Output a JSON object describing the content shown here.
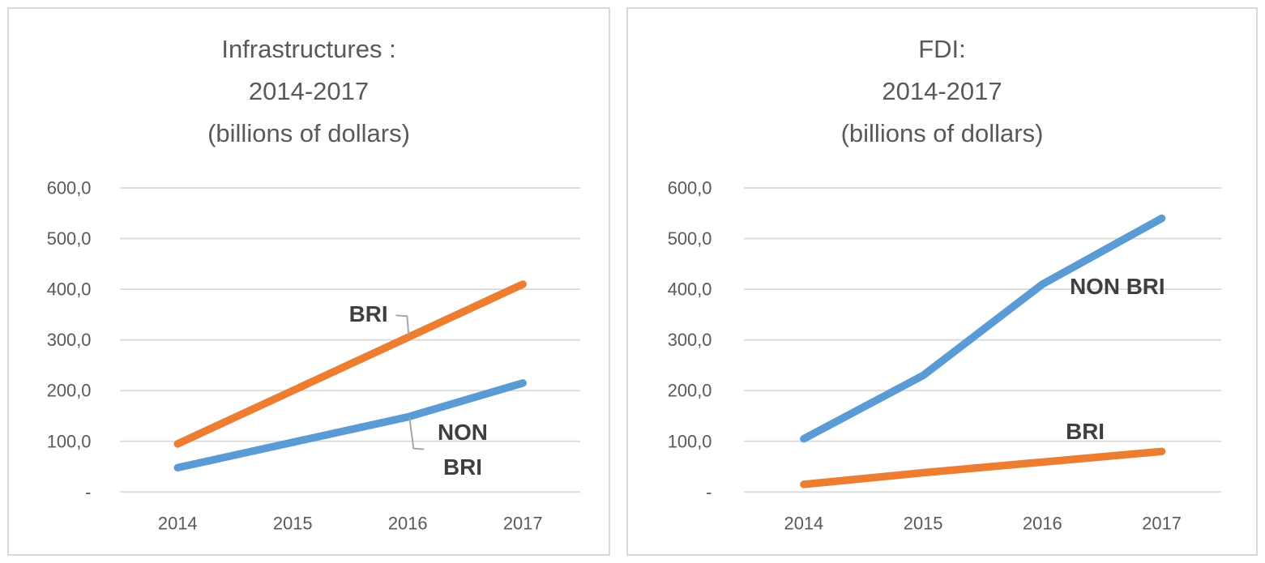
{
  "colors": {
    "bri_orange": "#ED7D31",
    "non_bri_blue": "#5B9BD5",
    "title_gray": "#595959",
    "tick_label_gray": "#595959",
    "annotation_gray": "#3F3F3F",
    "gridline_gray": "#D9D9D9",
    "leader_line_gray": "#A6A6A6",
    "panel_border_gray": "#D9D9D9",
    "background": "#FFFFFF"
  },
  "chart_data": [
    {
      "type": "line",
      "title": "Infrastructures : 2014-2017 (billions of dollars)",
      "title_lines": [
        "Infrastructures :",
        "2014-2017",
        "(billions of dollars)"
      ],
      "categories": [
        "2014",
        "2015",
        "2016",
        "2017"
      ],
      "series": [
        {
          "name": "BRI",
          "color": "#ED7D31",
          "values": [
            95,
            200,
            305,
            410
          ]
        },
        {
          "name": "NON BRI",
          "color": "#5B9BD5",
          "values": [
            48,
            98,
            148,
            215
          ]
        }
      ],
      "xlabel": "",
      "ylabel": "",
      "ylim": [
        0,
        600
      ],
      "ytick_interval": 100,
      "ytick_labels": [
        "-",
        "100,0",
        "200,0",
        "300,0",
        "400,0",
        "500,0",
        "600,0"
      ],
      "grid": "horizontal",
      "legend": "none",
      "annotations": [
        {
          "label": "BRI",
          "lines": [
            "BRI"
          ],
          "series": "BRI",
          "x": 446,
          "y": 378,
          "line_gap": 43,
          "leader": [
            [
              480,
              380
            ],
            [
              494,
              381
            ],
            [
              496,
              405
            ]
          ]
        },
        {
          "label": "NON BRI",
          "lines": [
            "NON",
            "BRI"
          ],
          "series": "NON BRI",
          "x": 563,
          "y": 525,
          "line_gap": 43,
          "leader": [
            [
              497,
              507
            ],
            [
              502,
              545
            ],
            [
              515,
              546
            ]
          ]
        }
      ]
    },
    {
      "type": "line",
      "title": "FDI: 2014-2017 (billions of dollars)",
      "title_lines": [
        "FDI:",
        "2014-2017",
        "(billions of dollars)"
      ],
      "categories": [
        "2014",
        "2015",
        "2016",
        "2017"
      ],
      "series": [
        {
          "name": "NON BRI",
          "color": "#5B9BD5",
          "values": [
            105,
            230,
            410,
            540
          ]
        },
        {
          "name": "BRI",
          "color": "#ED7D31",
          "values": [
            15,
            38,
            59,
            80
          ]
        }
      ],
      "xlabel": "",
      "ylabel": "",
      "ylim": [
        0,
        600
      ],
      "ytick_interval": 100,
      "ytick_labels": [
        "-",
        "100,0",
        "200,0",
        "300,0",
        "400,0",
        "500,0",
        "600,0"
      ],
      "grid": "horizontal",
      "legend": "none",
      "annotations": [
        {
          "label": "NON BRI",
          "lines": [
            "NON BRI"
          ],
          "series": "NON BRI",
          "x": 607,
          "y": 344,
          "line_gap": 43
        },
        {
          "label": "BRI",
          "lines": [
            "BRI"
          ],
          "series": "BRI",
          "x": 567,
          "y": 524,
          "line_gap": 43
        }
      ]
    }
  ]
}
